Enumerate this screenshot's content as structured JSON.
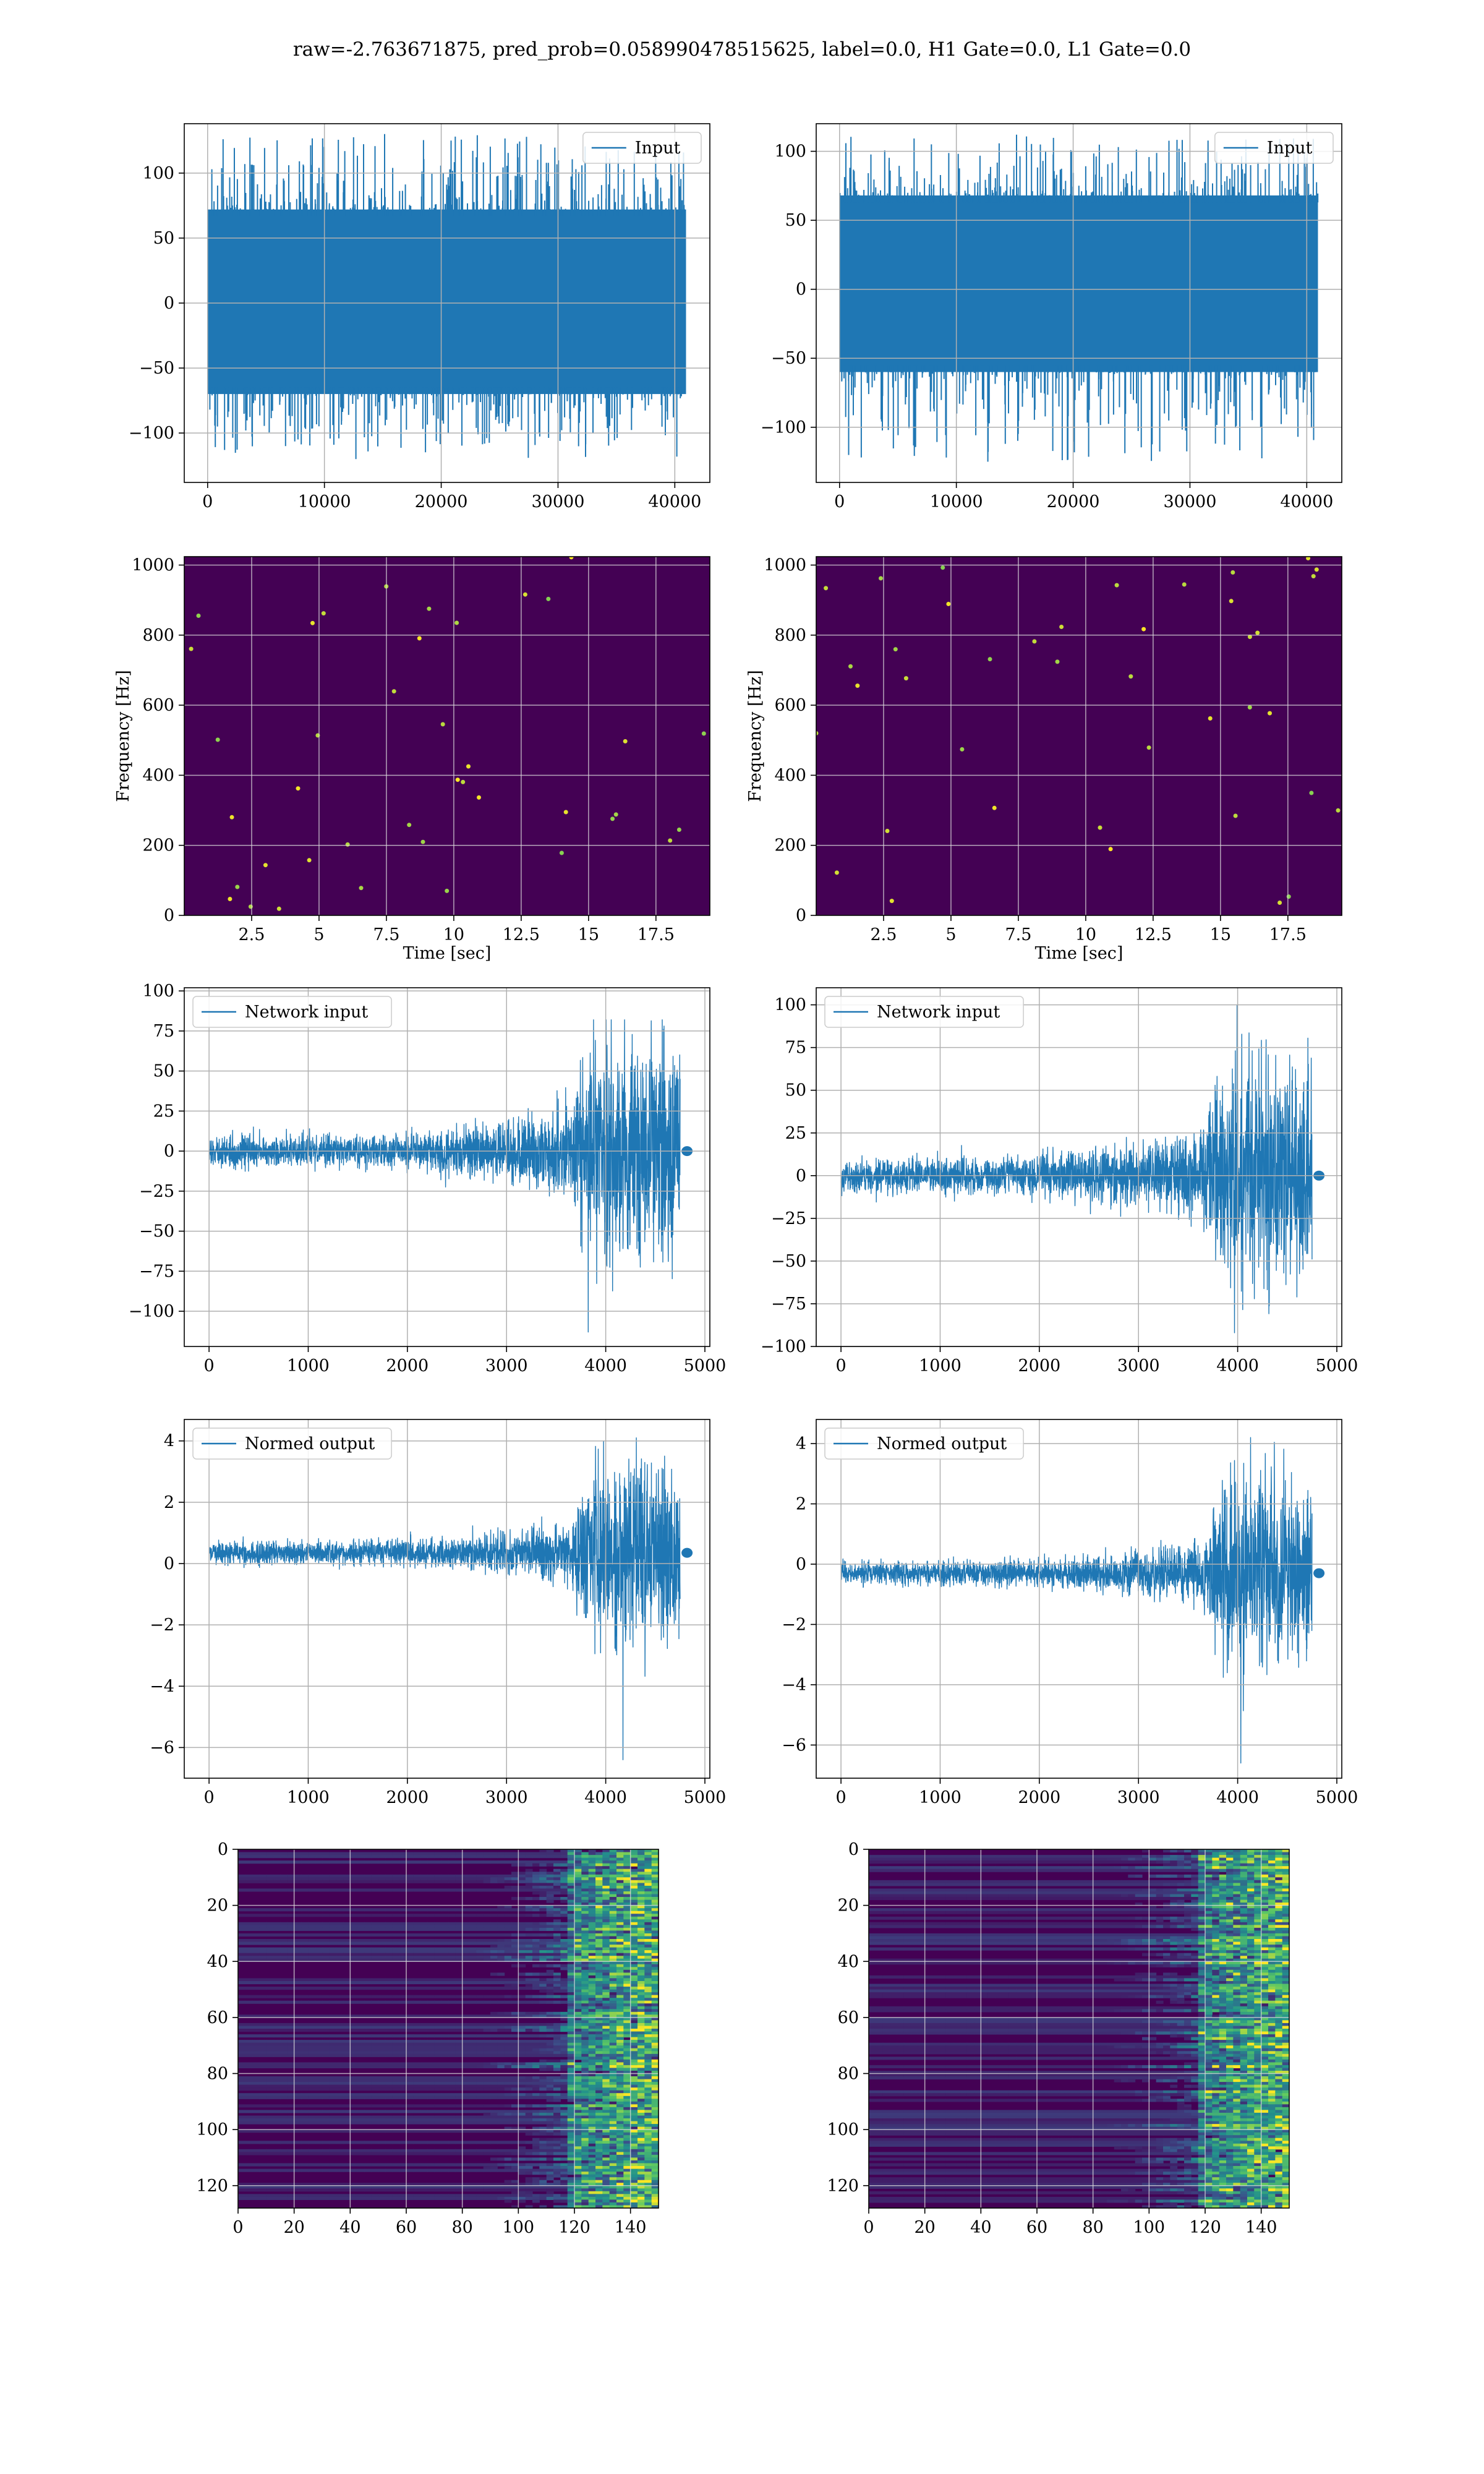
{
  "suptitle": "raw=-2.763671875, pred_prob=0.058990478515625, label=0.0, H1 Gate=0.0, L1 Gate=0.0",
  "colors": {
    "line": "#1f77b4",
    "grid": "#b0b0b0",
    "viridis_dark": "#440154",
    "viridis_mid": "#3b528b",
    "viridis_teal": "#21918c",
    "viridis_green": "#5ec962",
    "viridis_yellow": "#fde725"
  },
  "chart_data": [
    {
      "id": "input-h",
      "type": "line",
      "legend": "Input",
      "legend_loc": "upper right",
      "xlim": [
        -2000,
        43000
      ],
      "ylim": [
        -138,
        138
      ],
      "xticks": [
        0,
        10000,
        20000,
        30000,
        40000
      ],
      "yticks": [
        -100,
        -50,
        0,
        50,
        100
      ],
      "x_range": [
        0,
        40960
      ],
      "band": [
        -70,
        72
      ],
      "peak_range": [
        -120,
        130
      ],
      "grid": true
    },
    {
      "id": "input-l",
      "type": "line",
      "legend": "Input",
      "legend_loc": "upper right",
      "xlim": [
        -2000,
        43000
      ],
      "ylim": [
        -140,
        120
      ],
      "xticks": [
        0,
        10000,
        20000,
        30000,
        40000
      ],
      "yticks": [
        -100,
        -50,
        0,
        50,
        100
      ],
      "x_range": [
        0,
        40960
      ],
      "band": [
        -60,
        68
      ],
      "peak_range": [
        -125,
        112
      ],
      "grid": true
    },
    {
      "id": "spec-h",
      "type": "heatmap",
      "xlabel": "Time [sec]",
      "ylabel": "Frequency [Hz]",
      "xlim": [
        0,
        19.5
      ],
      "ylim": [
        0,
        1024
      ],
      "xticks": [
        2.5,
        5.0,
        7.5,
        10.0,
        12.5,
        15.0,
        17.5
      ],
      "yticks": [
        0,
        200,
        400,
        600,
        800,
        1000
      ],
      "grid": true
    },
    {
      "id": "spec-l",
      "type": "heatmap",
      "xlabel": "Time [sec]",
      "ylabel": "Frequency [Hz]",
      "xlim": [
        0,
        19.5
      ],
      "ylim": [
        0,
        1024
      ],
      "xticks": [
        2.5,
        5.0,
        7.5,
        10.0,
        12.5,
        15.0,
        17.5
      ],
      "yticks": [
        0,
        200,
        400,
        600,
        800,
        1000
      ],
      "grid": true
    },
    {
      "id": "net-h",
      "type": "line",
      "legend": "Network input",
      "legend_loc": "upper left",
      "xlim": [
        -250,
        5050
      ],
      "ylim": [
        -122,
        102
      ],
      "xticks": [
        0,
        1000,
        2000,
        3000,
        4000,
        5000
      ],
      "yticks": [
        -100,
        -75,
        -50,
        -25,
        0,
        25,
        50,
        75,
        100
      ],
      "x_range": [
        0,
        4750
      ],
      "baseline": 0,
      "envelope": [
        [
          0,
          12
        ],
        [
          2000,
          14
        ],
        [
          3000,
          24
        ],
        [
          3650,
          35
        ],
        [
          3750,
          75
        ],
        [
          4000,
          90
        ],
        [
          4750,
          85
        ]
      ],
      "min": -113,
      "max": 82,
      "grid": true
    },
    {
      "id": "net-l",
      "type": "line",
      "legend": "Network input",
      "legend_loc": "upper left",
      "xlim": [
        -250,
        5050
      ],
      "ylim": [
        -100,
        110
      ],
      "xticks": [
        0,
        1000,
        2000,
        3000,
        4000,
        5000
      ],
      "yticks": [
        -100,
        -75,
        -50,
        -25,
        0,
        25,
        50,
        75,
        100
      ],
      "x_range": [
        0,
        4750
      ],
      "baseline": 0,
      "envelope": [
        [
          0,
          12
        ],
        [
          2000,
          14
        ],
        [
          3000,
          24
        ],
        [
          3650,
          32
        ],
        [
          3750,
          65
        ],
        [
          4000,
          90
        ],
        [
          4750,
          80
        ]
      ],
      "min": -92,
      "max": 100,
      "grid": true
    },
    {
      "id": "norm-h",
      "type": "line",
      "legend": "Normed output",
      "legend_loc": "upper left",
      "xlim": [
        -250,
        5050
      ],
      "ylim": [
        -7,
        4.7
      ],
      "xticks": [
        0,
        1000,
        2000,
        3000,
        4000,
        5000
      ],
      "yticks": [
        -6,
        -4,
        -2,
        0,
        2,
        4
      ],
      "x_range": [
        0,
        4750
      ],
      "baseline": 0.35,
      "envelope": [
        [
          0,
          0.45
        ],
        [
          2000,
          0.55
        ],
        [
          3000,
          0.9
        ],
        [
          3650,
          1.3
        ],
        [
          3750,
          3.0
        ],
        [
          4000,
          4.0
        ],
        [
          4750,
          3.6
        ]
      ],
      "min": -6.4,
      "max": 4.1,
      "grid": true
    },
    {
      "id": "norm-l",
      "type": "line",
      "legend": "Normed output",
      "legend_loc": "upper left",
      "xlim": [
        -250,
        5050
      ],
      "ylim": [
        -7.1,
        4.8
      ],
      "xticks": [
        0,
        1000,
        2000,
        3000,
        4000,
        5000
      ],
      "yticks": [
        -6,
        -4,
        -2,
        0,
        2,
        4
      ],
      "x_range": [
        0,
        4750
      ],
      "baseline": -0.3,
      "envelope": [
        [
          0,
          0.45
        ],
        [
          2000,
          0.55
        ],
        [
          3000,
          0.9
        ],
        [
          3650,
          1.3
        ],
        [
          3750,
          3.0
        ],
        [
          4000,
          4.0
        ],
        [
          4750,
          3.8
        ]
      ],
      "min": -6.6,
      "max": 4.2,
      "grid": true
    },
    {
      "id": "feat-h",
      "type": "heatmap",
      "xlim": [
        0,
        150
      ],
      "ylim": [
        128,
        0
      ],
      "xticks": [
        0,
        20,
        40,
        60,
        80,
        100,
        120,
        140
      ],
      "yticks": [
        0,
        20,
        40,
        60,
        80,
        100,
        120
      ],
      "grid": true
    },
    {
      "id": "feat-l",
      "type": "heatmap",
      "xlim": [
        0,
        150
      ],
      "ylim": [
        128,
        0
      ],
      "xticks": [
        0,
        20,
        40,
        60,
        80,
        100,
        120,
        140
      ],
      "yticks": [
        0,
        20,
        40,
        60,
        80,
        100,
        120
      ],
      "grid": true
    }
  ]
}
